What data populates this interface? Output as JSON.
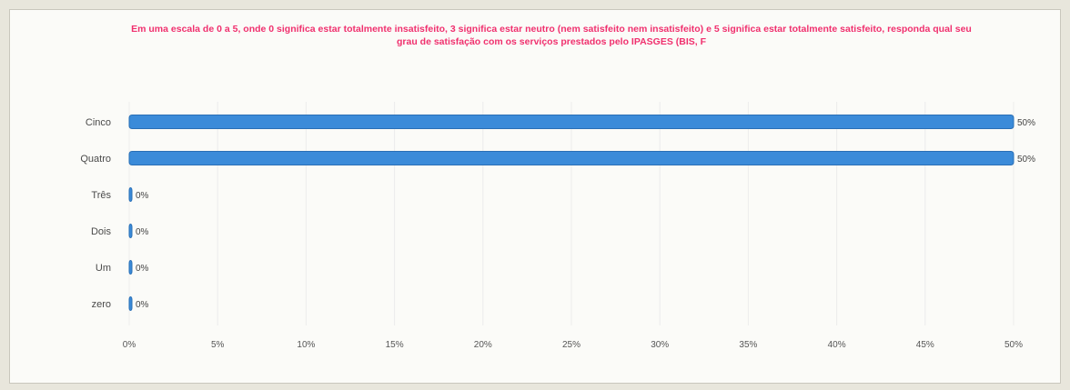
{
  "chart_data": {
    "type": "bar",
    "orientation": "horizontal",
    "title": "Em uma escala de 0 a 5, onde 0 significa estar totalmente insatisfeito, 3 significa estar neutro (nem satisfeito nem insatisfeito) e 5 significa estar totalmente satisfeito, responda qual seu grau de satisfação com os serviços prestados pelo IPASGES (BIS, F",
    "categories": [
      "Cinco",
      "Quatro",
      "Três",
      "Dois",
      "Um",
      "zero"
    ],
    "values": [
      50,
      50,
      0,
      0,
      0,
      0
    ],
    "data_labels": [
      "50%",
      "50%",
      "0%",
      "0%",
      "0%",
      "0%"
    ],
    "xlim": [
      0,
      50
    ],
    "x_ticks": [
      "0%",
      "5%",
      "10%",
      "15%",
      "20%",
      "25%",
      "30%",
      "35%",
      "40%",
      "45%",
      "50%"
    ],
    "grid": "vertical",
    "legend": "none",
    "colors": {
      "bar": "#3b8bd9",
      "title": "#f0306e"
    }
  }
}
